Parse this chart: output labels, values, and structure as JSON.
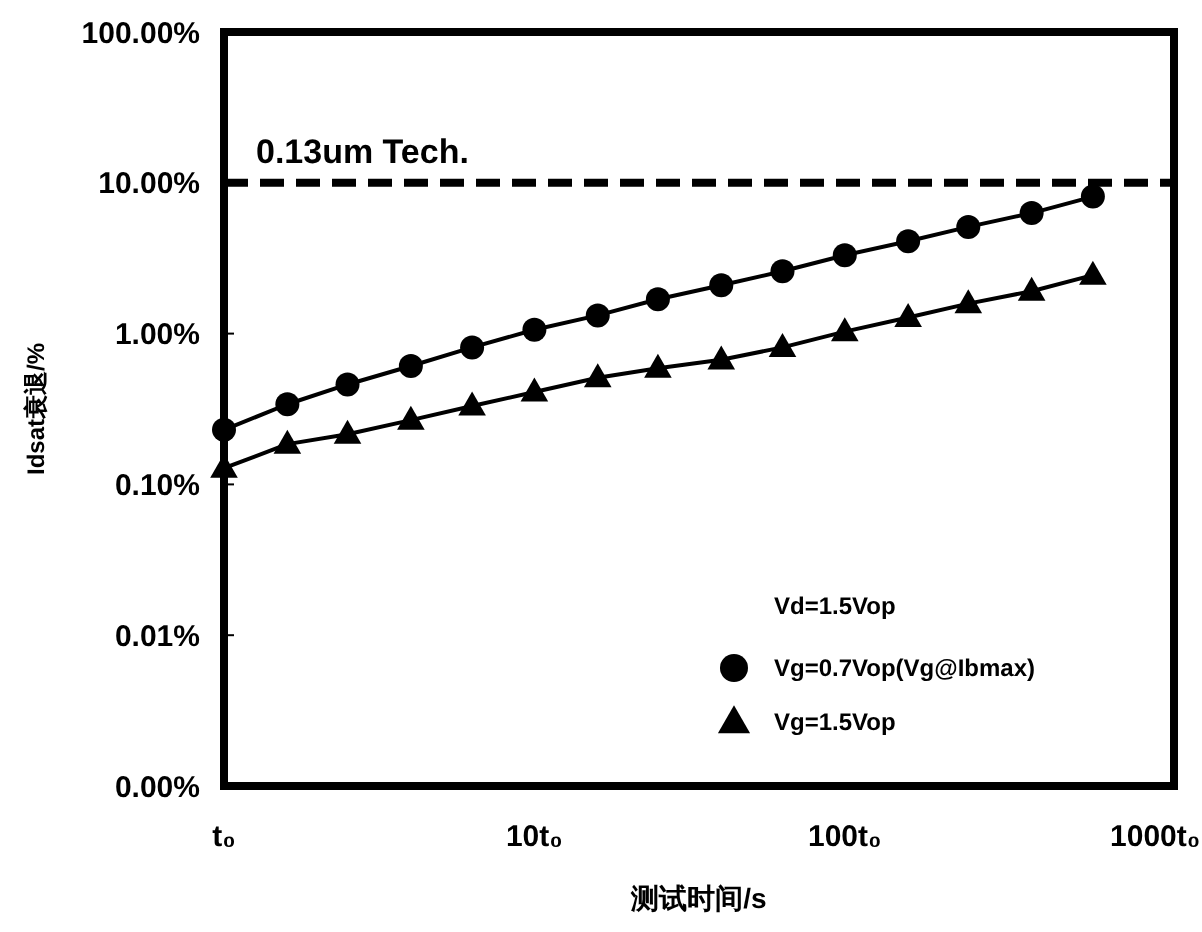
{
  "chart_data": {
    "type": "line",
    "xlabel": "测试时间/s",
    "ylabel": "Idsat衰退/%",
    "legend_title": "Vd=1.5Vop",
    "log": "xy",
    "grid": false,
    "legend": "bottom right",
    "line_style": "solid",
    "xlim": [
      1,
      1150
    ],
    "ylim": [
      0.001,
      100
    ],
    "xticks": [
      {
        "value": 1,
        "label": "t₀"
      },
      {
        "value": 10,
        "label": "10t₀"
      },
      {
        "value": 100,
        "label": "100t₀"
      },
      {
        "value": 1000,
        "label": "1000t₀"
      }
    ],
    "yticks": [
      {
        "value": 0.001,
        "label": "0.00%"
      },
      {
        "value": 0.01,
        "label": "0.01%"
      },
      {
        "value": 0.1,
        "label": "0.10%"
      },
      {
        "value": 1,
        "label": "1.00%"
      },
      {
        "value": 10,
        "label": "10.00%"
      },
      {
        "value": 100,
        "label": "100.00%"
      }
    ],
    "x": [
      1,
      1.6,
      2.5,
      4,
      6.3,
      10,
      16,
      25,
      40,
      63,
      100,
      160,
      250,
      400,
      630
    ],
    "series": [
      {
        "name": "Vg=0.7Vop(Vg@Ibmax)",
        "color": "#000000",
        "marker": "circle",
        "values": [
          0.23,
          0.34,
          0.46,
          0.61,
          0.81,
          1.06,
          1.32,
          1.69,
          2.09,
          2.59,
          3.31,
          4.1,
          5.1,
          6.3,
          8.1
        ]
      },
      {
        "name": "Vg=1.5Vop",
        "color": "#000000",
        "marker": "triangle",
        "values": [
          0.128,
          0.185,
          0.215,
          0.267,
          0.331,
          0.41,
          0.51,
          0.59,
          0.67,
          0.81,
          1.03,
          1.28,
          1.58,
          1.91,
          2.44
        ]
      }
    ],
    "ref_lines": [
      {
        "axis": "y",
        "value": 10,
        "label": "0.13um Tech.",
        "color": "#000000",
        "line_style": "dashed"
      }
    ]
  }
}
